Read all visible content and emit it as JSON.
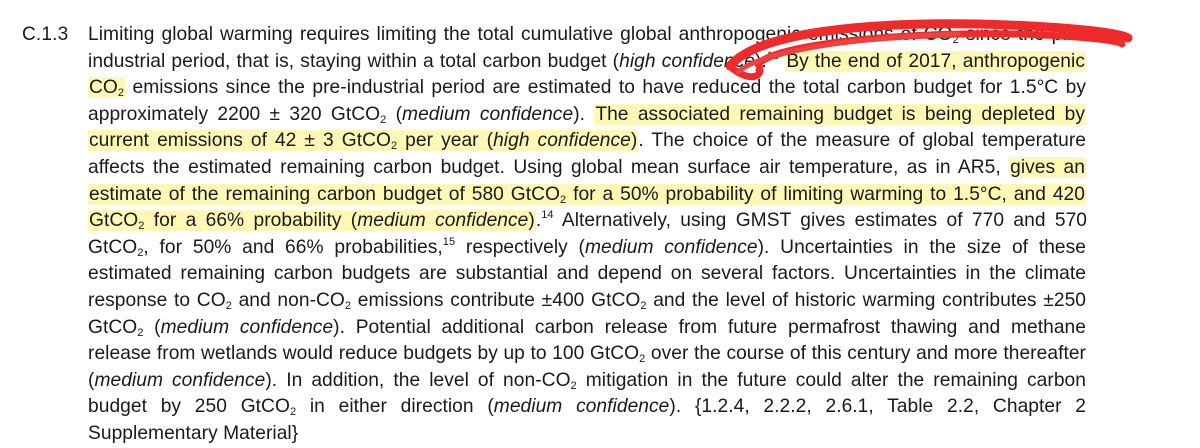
{
  "section": {
    "number": "C.1.3"
  },
  "paragraph": {
    "s01": "Limiting global warming requires limiting the total cumulative global anthropogenic emissions of CO",
    "s02": " since the pre-industrial period, that is, staying within a total carbon budget (",
    "conf_high": "high confidence",
    "s03": ").",
    "ref13": "13",
    "s04": " ",
    "hl1": "By the end of 2017, anthropogenic CO",
    "s05": " emissions since the pre-industrial period are estimated to have reduced the total carbon budget for 1.5°C by approximately 2200 ± 320 GtCO",
    "s06": " (",
    "conf_medium": "medium confidence",
    "s07": "). ",
    "hl2a": "The associated remaining budget is being depleted by current emissions of 42 ± 3 GtCO",
    "hl2b": " per year (",
    "hl2c": ")",
    "s08": ". The choice of the measure of global temperature affects the estimated remaining carbon budget. Using global mean surface air temperature, as in AR5, ",
    "hl3a": "gives an estimate of the remaining carbon budget of 580 GtCO",
    "hl3b": " for a 50% probability of limiting warming to 1.5°C, and 420 GtCO",
    "hl3c": " for a 66% probability (",
    "hl3d": ")",
    "s09": ".",
    "ref14": "14",
    "s10": " Alternatively, using GMST gives estimates of 770 and 570 GtCO",
    "s11": ", for 50% and 66% probabilities,",
    "ref15": "15",
    "s12": " respectively (",
    "s13": "). Uncertainties in the size of these estimated remaining carbon budgets are substantial and depend on several factors. Uncertainties in the climate response to CO",
    "s14": " and non-CO",
    "s15": " emissions contribute ±400 GtCO",
    "s16": " and the level of historic warming contributes ±250 GtCO",
    "s17": " (",
    "s18": "). Potential additional carbon release from future permafrost thawing and methane release from wetlands would reduce budgets by up to 100 GtCO",
    "s19": " over the course of this century and more thereafter (",
    "s20": "). In addition, the level of non-CO",
    "s21": " mitigation in the future could alter the remaining carbon budget by 250 GtCO",
    "s22": " in either direction (",
    "s23": "). {1.2.4, 2.2.2, 2.6.1, Table 2.2, Chapter 2 Supplementary Material}",
    "sub2": "2"
  },
  "annotation_colors": {
    "highlight": "#fff078",
    "scribble": "#ee2a2a"
  }
}
